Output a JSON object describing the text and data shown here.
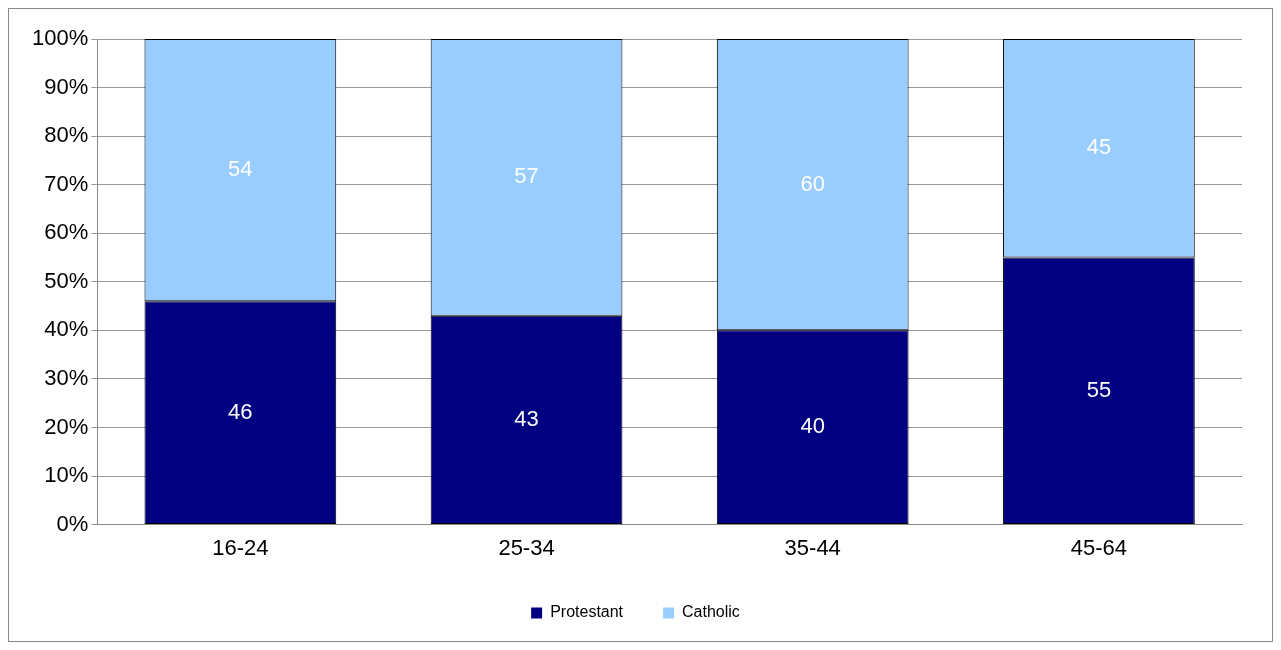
{
  "chart_data": {
    "type": "bar",
    "stacked": true,
    "categories": [
      "16-24",
      "25-34",
      "35-44",
      "45-64"
    ],
    "series": [
      {
        "name": "Protestant",
        "color": "#000080",
        "values": [
          46,
          43,
          40,
          55
        ]
      },
      {
        "name": "Catholic",
        "color": "#99ccff",
        "values": [
          54,
          57,
          60,
          45
        ]
      }
    ],
    "ylim": [
      0,
      100
    ],
    "yticks": [
      {
        "value": 0,
        "label": "0%"
      },
      {
        "value": 10,
        "label": "10%"
      },
      {
        "value": 20,
        "label": "20%"
      },
      {
        "value": 30,
        "label": "30%"
      },
      {
        "value": 40,
        "label": "40%"
      },
      {
        "value": 50,
        "label": "50%"
      },
      {
        "value": 60,
        "label": "60%"
      },
      {
        "value": 70,
        "label": "70%"
      },
      {
        "value": 80,
        "label": "80%"
      },
      {
        "value": 90,
        "label": "90%"
      },
      {
        "value": 100,
        "label": "100%"
      }
    ],
    "grid": "y",
    "legend": "bottom",
    "data_labels": true
  }
}
